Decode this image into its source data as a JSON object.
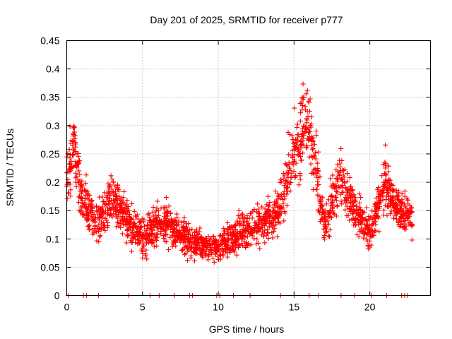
{
  "chart_data": {
    "type": "scatter",
    "title": "Day 201 of 2025, SRMTID for receiver p777",
    "xlabel": "GPS time / hours",
    "ylabel": "SRMTID / TECUs",
    "xlim": [
      0,
      24
    ],
    "ylim": [
      0,
      0.45
    ],
    "x_ticks": [
      0,
      5,
      10,
      15,
      20
    ],
    "x_tick_labels": [
      "0",
      "5",
      "10",
      "15",
      "20"
    ],
    "y_ticks": [
      0,
      0.05,
      0.1,
      0.15,
      0.2,
      0.25,
      0.3,
      0.35,
      0.4,
      0.45
    ],
    "y_tick_labels": [
      "0",
      "0.05",
      "0.1",
      "0.15",
      "0.2",
      "0.25",
      "0.3",
      "0.35",
      "0.4",
      "0.45"
    ],
    "grid": true,
    "marker": "+",
    "series": [
      {
        "name": "SRMTID",
        "color": "#ff0000",
        "profile": [
          {
            "x": 0.0,
            "y": 0.22,
            "spread": 0.06
          },
          {
            "x": 0.5,
            "y": 0.26,
            "spread": 0.07
          },
          {
            "x": 1.0,
            "y": 0.17,
            "spread": 0.05
          },
          {
            "x": 2.0,
            "y": 0.13,
            "spread": 0.04
          },
          {
            "x": 3.0,
            "y": 0.17,
            "spread": 0.05
          },
          {
            "x": 4.0,
            "y": 0.13,
            "spread": 0.04
          },
          {
            "x": 5.0,
            "y": 0.1,
            "spread": 0.04
          },
          {
            "x": 6.0,
            "y": 0.13,
            "spread": 0.04
          },
          {
            "x": 7.0,
            "y": 0.12,
            "spread": 0.04
          },
          {
            "x": 8.0,
            "y": 0.1,
            "spread": 0.035
          },
          {
            "x": 9.0,
            "y": 0.09,
            "spread": 0.03
          },
          {
            "x": 10.0,
            "y": 0.085,
            "spread": 0.03
          },
          {
            "x": 11.0,
            "y": 0.1,
            "spread": 0.035
          },
          {
            "x": 12.0,
            "y": 0.12,
            "spread": 0.04
          },
          {
            "x": 13.0,
            "y": 0.13,
            "spread": 0.04
          },
          {
            "x": 14.0,
            "y": 0.15,
            "spread": 0.05
          },
          {
            "x": 15.0,
            "y": 0.26,
            "spread": 0.07
          },
          {
            "x": 16.0,
            "y": 0.3,
            "spread": 0.08
          },
          {
            "x": 17.0,
            "y": 0.12,
            "spread": 0.04
          },
          {
            "x": 18.0,
            "y": 0.21,
            "spread": 0.06
          },
          {
            "x": 19.0,
            "y": 0.15,
            "spread": 0.04
          },
          {
            "x": 20.0,
            "y": 0.11,
            "spread": 0.035
          },
          {
            "x": 21.0,
            "y": 0.2,
            "spread": 0.06
          },
          {
            "x": 22.0,
            "y": 0.15,
            "spread": 0.04
          },
          {
            "x": 22.8,
            "y": 0.14,
            "spread": 0.04
          }
        ],
        "point_count": 2200,
        "x_range": [
          0.0,
          22.8
        ],
        "zero_points_x": [
          0.1,
          1.1,
          1.3,
          2.1,
          4.1,
          5.5,
          6.1,
          7.1,
          8.1,
          8.3,
          9.9,
          10.1,
          11.0,
          12.1,
          14.1,
          15.0,
          16.0,
          16.6,
          18.1,
          19.0,
          20.1,
          21.1,
          22.1,
          22.3,
          22.5
        ]
      }
    ]
  }
}
